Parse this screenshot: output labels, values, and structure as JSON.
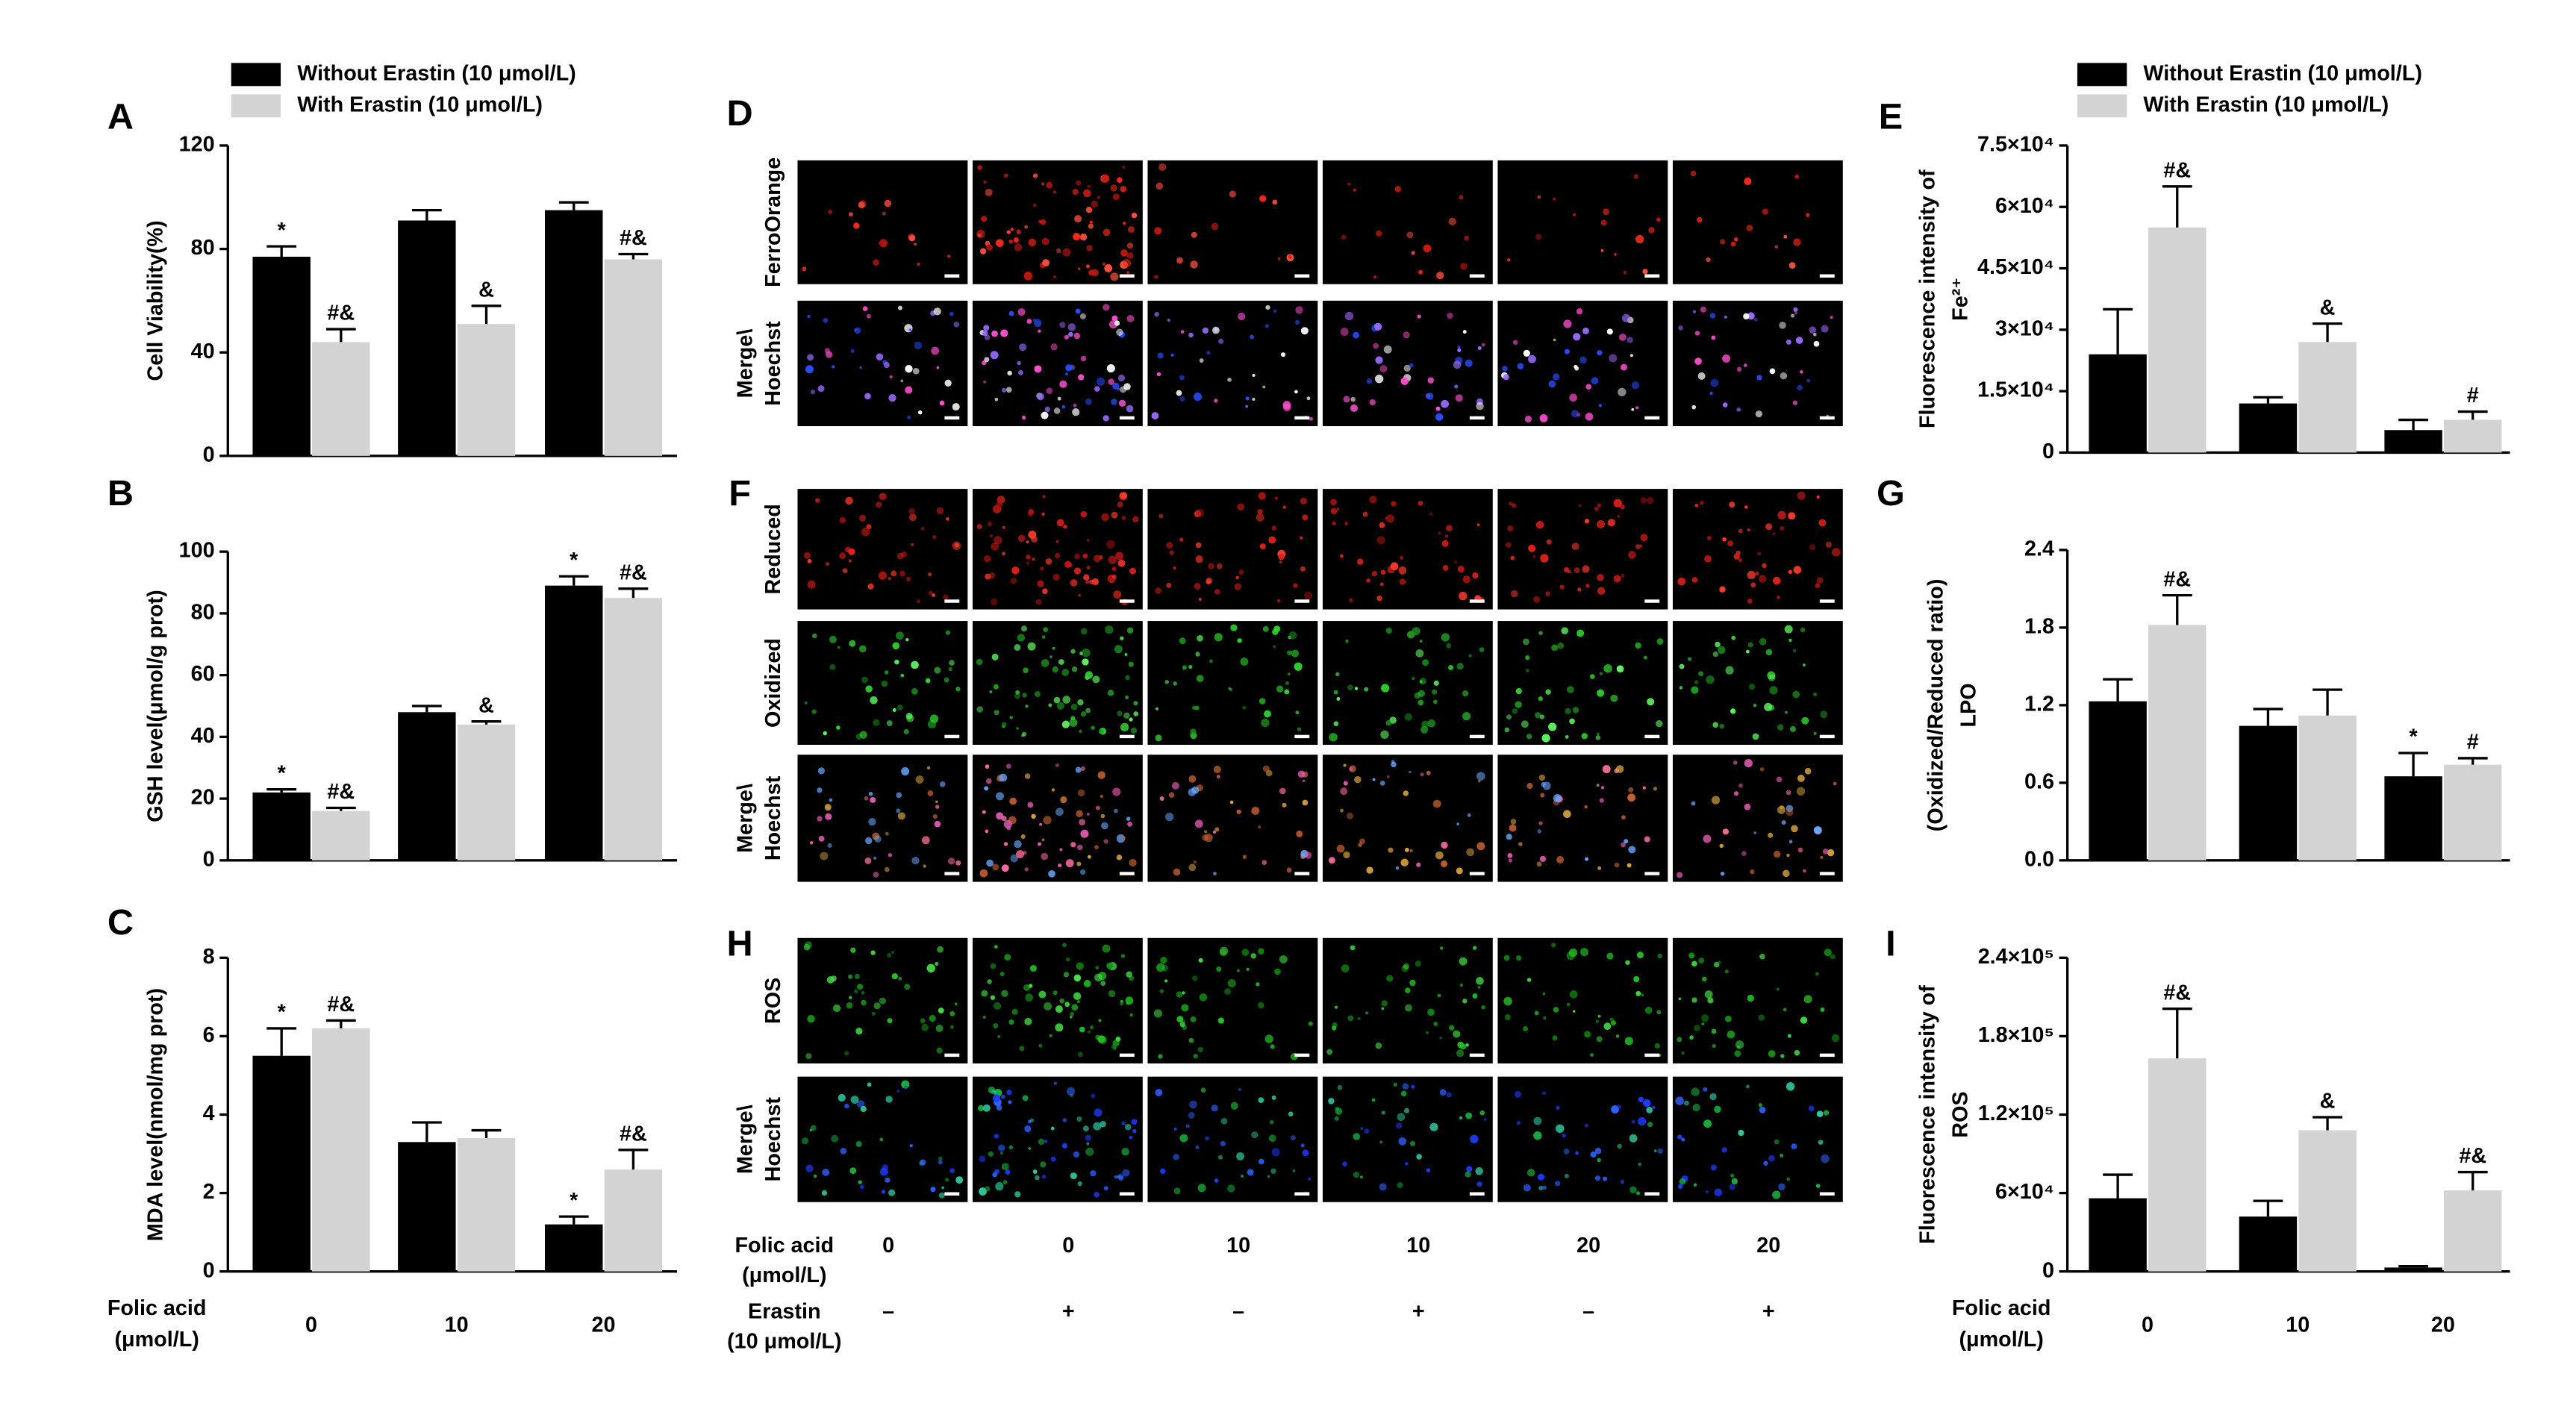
{
  "chart_data": [
    {
      "type": "bar",
      "panel": "A",
      "ylabel": [
        "Cell Viability(%)"
      ],
      "legend": true,
      "categories": [
        null,
        null,
        null
      ],
      "series": [
        {
          "name": "Without Erastin (10 μmol/L)",
          "color": "#000000",
          "values": [
            77,
            91,
            95
          ],
          "errors": [
            4,
            4,
            3
          ],
          "annotations": [
            "*",
            null,
            null
          ]
        },
        {
          "name": "With Erastin (10 μmol/L)",
          "color": "#d3d3d3",
          "values": [
            44,
            51,
            76
          ],
          "errors": [
            5,
            7,
            2
          ],
          "annotations": [
            "#&",
            "&",
            "#&"
          ]
        }
      ],
      "ylim": [
        0,
        120
      ],
      "yticks": [
        0,
        40,
        80,
        120
      ]
    },
    {
      "type": "bar",
      "panel": "B",
      "ylabel": [
        "GSH level(μmol/g prot)"
      ],
      "categories": [
        null,
        null,
        null
      ],
      "series": [
        {
          "color": "#000000",
          "values": [
            22,
            48,
            89
          ],
          "errors": [
            1,
            2,
            3
          ],
          "annotations": [
            "*",
            null,
            "*"
          ]
        },
        {
          "color": "#d3d3d3",
          "values": [
            16,
            44,
            85
          ],
          "errors": [
            1,
            1,
            3
          ],
          "annotations": [
            "#&",
            "&",
            "#&"
          ]
        }
      ],
      "ylim": [
        0,
        100
      ],
      "yticks": [
        0,
        20,
        40,
        60,
        80,
        100
      ]
    },
    {
      "type": "bar",
      "panel": "C",
      "ylabel": [
        "MDA level(nmol/mg prot)"
      ],
      "xlabel": [
        "Folic acid",
        "(μmol/L)"
      ],
      "categories": [
        "0",
        "10",
        "20"
      ],
      "series": [
        {
          "color": "#000000",
          "values": [
            5.5,
            3.3,
            1.2
          ],
          "errors": [
            0.7,
            0.5,
            0.2
          ],
          "annotations": [
            "*",
            null,
            "*"
          ]
        },
        {
          "color": "#d3d3d3",
          "values": [
            6.2,
            3.4,
            2.6
          ],
          "errors": [
            0.2,
            0.2,
            0.5
          ],
          "annotations": [
            "#&",
            null,
            "#&"
          ]
        }
      ],
      "ylim": [
        0,
        8
      ],
      "yticks": [
        0,
        2,
        4,
        6,
        8
      ]
    },
    {
      "type": "bar",
      "panel": "E",
      "ylabel": [
        "Fluorescence intensity of",
        "Fe²⁺"
      ],
      "legend": true,
      "categories": [
        null,
        null,
        null
      ],
      "series": [
        {
          "name": "Without Erastin (10 μmol/L)",
          "color": "#000000",
          "values": [
            24000,
            12000,
            5500
          ],
          "errors": [
            11000,
            1500,
            2500
          ],
          "annotations": [
            null,
            null,
            null
          ]
        },
        {
          "name": "With Erastin (10 μmol/L)",
          "color": "#d3d3d3",
          "values": [
            55000,
            27000,
            8000
          ],
          "errors": [
            10000,
            4500,
            2000
          ],
          "annotations": [
            "#&",
            "&",
            "#"
          ]
        }
      ],
      "ylim": [
        0,
        75000
      ],
      "yticks": [
        0,
        {
          "value": 15000,
          "label": "1.5×10⁴"
        },
        {
          "value": 30000,
          "label": "3×10⁴"
        },
        {
          "value": 45000,
          "label": "4.5×10⁴"
        },
        {
          "value": 60000,
          "label": "6×10⁴"
        },
        {
          "value": 75000,
          "label": "7.5×10⁴"
        }
      ]
    },
    {
      "type": "bar",
      "panel": "G",
      "ylabel": [
        "(Oxidized/Reduced ratio)",
        "LPO"
      ],
      "categories": [
        null,
        null,
        null
      ],
      "series": [
        {
          "color": "#000000",
          "values": [
            1.23,
            1.04,
            0.65
          ],
          "errors": [
            0.17,
            0.13,
            0.18
          ],
          "annotations": [
            null,
            null,
            "*"
          ]
        },
        {
          "color": "#d3d3d3",
          "values": [
            1.82,
            1.12,
            0.74
          ],
          "errors": [
            0.23,
            0.2,
            0.05
          ],
          "annotations": [
            "#&",
            null,
            "#"
          ]
        }
      ],
      "ylim": [
        0,
        2.4
      ],
      "yticks": [
        {
          "value": 0,
          "label": "0.0"
        },
        0.6,
        1.2,
        1.8,
        2.4
      ]
    },
    {
      "type": "bar",
      "panel": "I",
      "ylabel": [
        "Fluorescence intensity of",
        "ROS"
      ],
      "xlabel": [
        "Folic acid",
        "(μmol/L)"
      ],
      "categories": [
        "0",
        "10",
        "20"
      ],
      "series": [
        {
          "color": "#000000",
          "values": [
            56000,
            42000,
            3000
          ],
          "errors": [
            18000,
            12000,
            1000
          ],
          "annotations": [
            null,
            null,
            null
          ]
        },
        {
          "color": "#d3d3d3",
          "values": [
            163000,
            108000,
            62000
          ],
          "errors": [
            38000,
            10000,
            14000
          ],
          "annotations": [
            "#&",
            "&",
            "#&"
          ]
        }
      ],
      "ylim": [
        0,
        240000
      ],
      "yticks": [
        0,
        {
          "value": 60000,
          "label": "6×10⁴"
        },
        {
          "value": 120000,
          "label": "1.2×10⁵"
        },
        {
          "value": 180000,
          "label": "1.8×10⁵"
        },
        {
          "value": 240000,
          "label": "2.4×10⁵"
        }
      ]
    }
  ],
  "microscopy": {
    "panels": [
      {
        "letter": "D",
        "rows": [
          {
            "label": [
              {
                "text": "FerroOrange",
                "color": "#e8331c"
              }
            ]
          },
          {
            "label": [
              {
                "text": "Merge\\",
                "color": "#000000"
              },
              {
                "text": "Hoechst",
                "color": "#1a6fd8"
              }
            ]
          }
        ]
      },
      {
        "letter": "F",
        "rows": [
          {
            "label": [
              {
                "text": "Reduced",
                "color": "#e8331c"
              }
            ]
          },
          {
            "label": [
              {
                "text": "Oxidized",
                "color": "#2fb52f"
              }
            ]
          },
          {
            "label": [
              {
                "text": "Merge\\",
                "color": "#000000"
              },
              {
                "text": "Hoechst",
                "color": "#1a6fd8"
              }
            ]
          }
        ]
      },
      {
        "letter": "H",
        "rows": [
          {
            "label": [
              {
                "text": "ROS",
                "color": "#2fb52f"
              }
            ]
          },
          {
            "label": [
              {
                "text": "Merge\\",
                "color": "#000000"
              },
              {
                "text": "Hoechst",
                "color": "#1a6fd8"
              }
            ]
          }
        ]
      }
    ],
    "conditions": [
      {
        "label": [
          "Folic acid",
          "(μmol/L)"
        ],
        "values": [
          "0",
          "0",
          "10",
          "10",
          "20",
          "20"
        ]
      },
      {
        "label": [
          "Erastin",
          "(10 μmol/L)"
        ],
        "values": [
          "–",
          "+",
          "–",
          "+",
          "–",
          "+"
        ]
      }
    ]
  }
}
